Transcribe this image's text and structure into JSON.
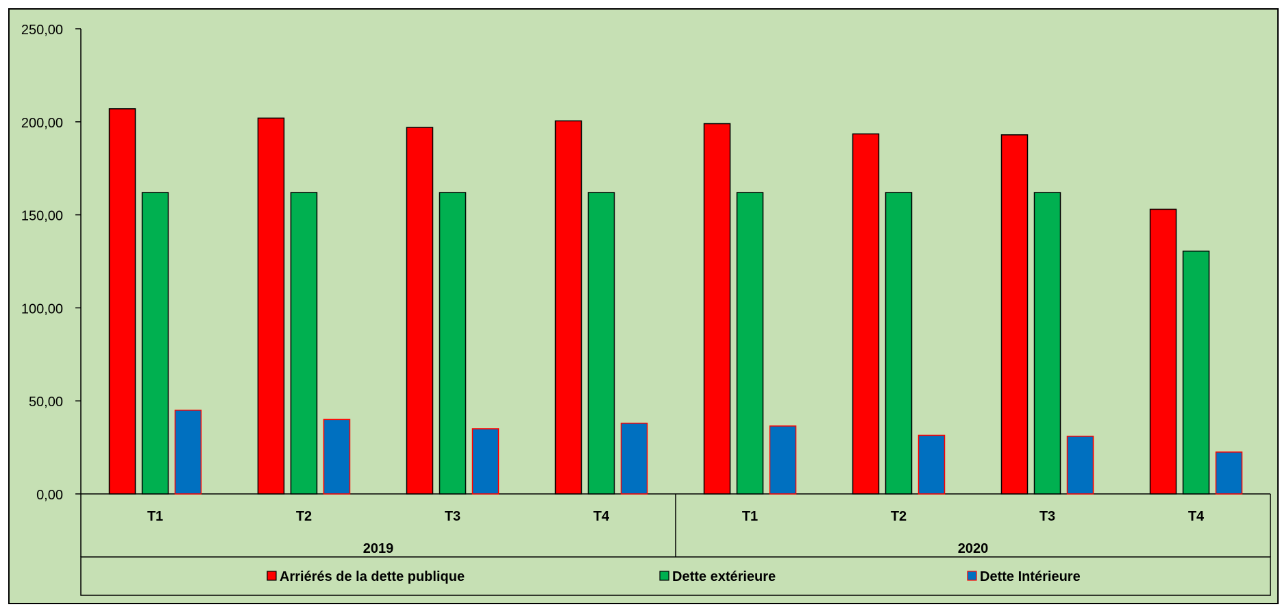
{
  "chart_data": {
    "type": "bar",
    "categories": [
      "T1",
      "T2",
      "T3",
      "T4",
      "T1",
      "T2",
      "T3",
      "T4"
    ],
    "groups": [
      {
        "label": "2019",
        "count": 4
      },
      {
        "label": "2020",
        "count": 4
      }
    ],
    "series": [
      {
        "name": "Arriérés de la dette publique",
        "color": "#ff0000",
        "values": [
          207.0,
          202.0,
          197.0,
          200.5,
          199.0,
          193.5,
          193.0,
          153.0
        ]
      },
      {
        "name": "Dette extérieure",
        "color": "#00b050",
        "values": [
          162.0,
          162.0,
          162.0,
          162.0,
          162.0,
          162.0,
          162.0,
          130.5
        ]
      },
      {
        "name": "Dette Intérieure",
        "color": "#0070c0",
        "outline_color": "#ff0000",
        "values": [
          45.0,
          40.0,
          35.0,
          38.0,
          36.5,
          31.5,
          31.0,
          22.5
        ]
      }
    ],
    "yticks": [
      "0,00",
      "50,00",
      "100,00",
      "150,00",
      "200,00",
      "250,00"
    ],
    "ylim": [
      0,
      250
    ],
    "grid": false,
    "legend_position": "bottom",
    "background_color": "#c6e0b4",
    "title": "",
    "xlabel": "",
    "ylabel": ""
  }
}
